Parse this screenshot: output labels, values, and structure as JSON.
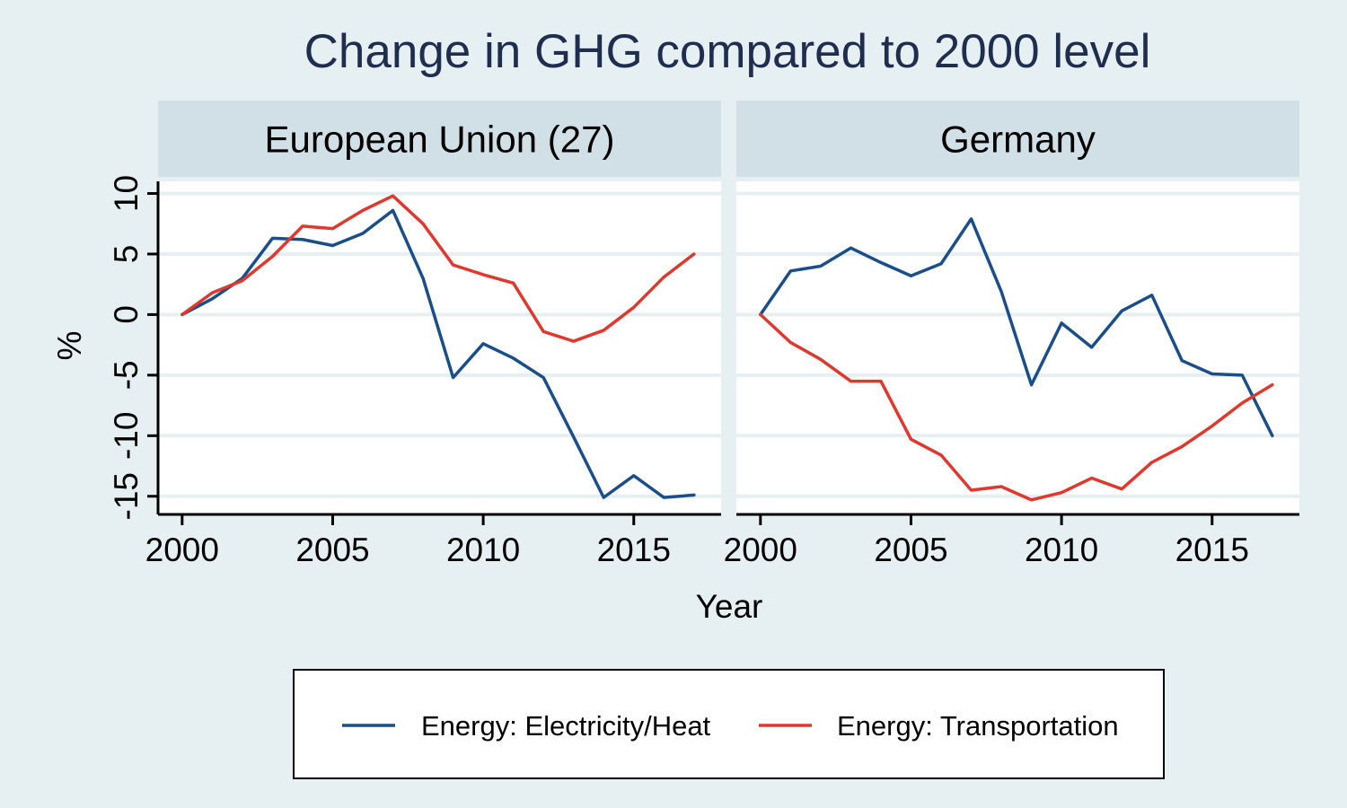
{
  "chart_data": {
    "type": "line",
    "title": "Change in GHG compared to 2000 level",
    "xlabel": "Year",
    "ylabel": "%",
    "x": [
      2000,
      2001,
      2002,
      2003,
      2004,
      2005,
      2006,
      2007,
      2008,
      2009,
      2010,
      2011,
      2012,
      2013,
      2014,
      2015,
      2016,
      2017
    ],
    "xlim": [
      1999.2,
      2017.9
    ],
    "ylim": [
      -16.5,
      11
    ],
    "xticks": [
      "2000",
      "2005",
      "2010",
      "2015"
    ],
    "yticks": [
      "-15",
      "-10",
      "-5",
      "0",
      "5",
      "10"
    ],
    "grid": true,
    "legend_position": "bottom",
    "series_colors": {
      "Energy: Electricity/Heat": "#1a4e8a",
      "Energy: Transportation": "#e0382c"
    },
    "panels": [
      {
        "name": "European Union (27)",
        "series": [
          {
            "name": "Energy: Electricity/Heat",
            "values": [
              0,
              1.3,
              3.0,
              6.3,
              6.2,
              5.7,
              6.7,
              8.6,
              3.0,
              -5.2,
              -2.4,
              -3.6,
              -5.2,
              -10.1,
              -15.1,
              -13.3,
              -15.1,
              -14.9
            ]
          },
          {
            "name": "Energy: Transportation",
            "values": [
              0,
              1.8,
              2.8,
              4.8,
              7.3,
              7.1,
              8.6,
              9.8,
              7.5,
              4.1,
              3.3,
              2.6,
              -1.4,
              -2.2,
              -1.3,
              0.6,
              3.1,
              5.0
            ]
          }
        ]
      },
      {
        "name": "Germany",
        "series": [
          {
            "name": "Energy: Electricity/Heat",
            "values": [
              0,
              3.6,
              4.0,
              5.5,
              4.3,
              3.2,
              4.2,
              7.9,
              1.9,
              -5.8,
              -0.7,
              -2.7,
              0.3,
              1.6,
              -3.8,
              -4.9,
              -5.0,
              -10.0
            ]
          },
          {
            "name": "Energy: Transportation",
            "values": [
              0,
              -2.3,
              -3.7,
              -5.5,
              -5.5,
              -10.3,
              -11.6,
              -14.5,
              -14.2,
              -15.3,
              -14.7,
              -13.5,
              -14.4,
              -12.2,
              -10.9,
              -9.2,
              -7.3,
              -5.8
            ]
          }
        ]
      }
    ]
  }
}
